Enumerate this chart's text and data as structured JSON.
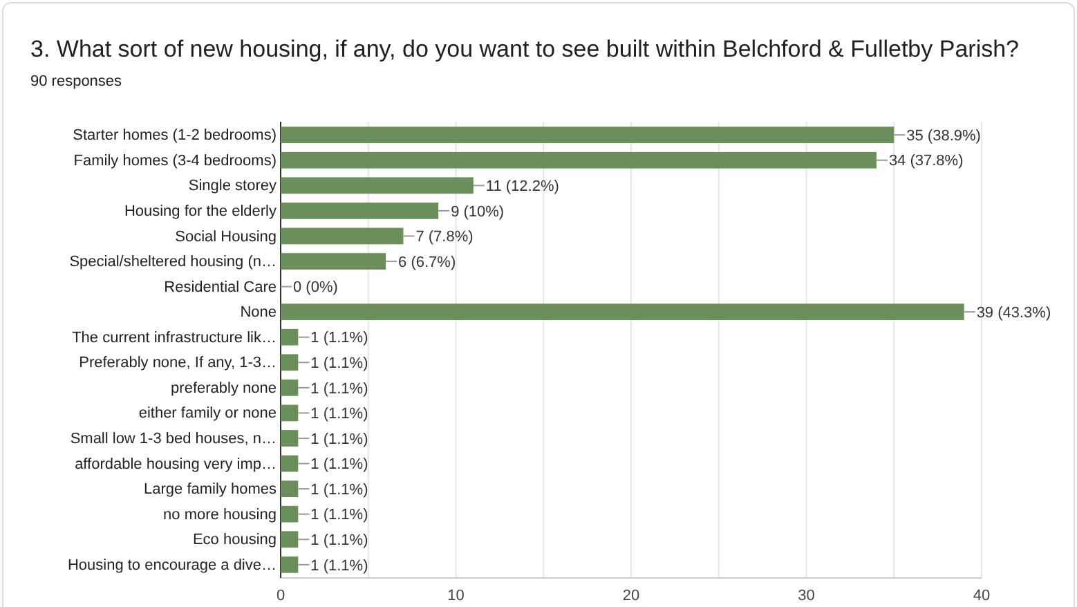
{
  "chart_data": {
    "type": "bar",
    "orientation": "horizontal",
    "title": "3. What sort of new housing, if any, do you want to see built within Belchford & Fulletby Parish?",
    "subtitle": "90 responses",
    "categories": [
      "Starter homes (1-2 bedrooms)",
      "Family homes (3-4 bedrooms)",
      "Single storey",
      "Housing for the elderly",
      "Social Housing",
      "Special/sheltered housing (n…",
      "Residential Care",
      "None",
      "The current infrastructure lik…",
      "Preferably none, If any, 1-3…",
      "preferably none",
      "either family or none",
      "Small low 1-3 bed houses, n…",
      "affordable housing very imp…",
      "Large family homes",
      "no more housing",
      "Eco housing",
      "Housing to encourage a dive…"
    ],
    "values": [
      35,
      34,
      11,
      9,
      7,
      6,
      0,
      39,
      1,
      1,
      1,
      1,
      1,
      1,
      1,
      1,
      1,
      1
    ],
    "value_labels": [
      "35 (38.9%)",
      "34 (37.8%)",
      "11 (12.2%)",
      "9 (10%)",
      "7 (7.8%)",
      "6 (6.7%)",
      "0 (0%)",
      "39 (43.3%)",
      "1 (1.1%)",
      "1 (1.1%)",
      "1 (1.1%)",
      "1 (1.1%)",
      "1 (1.1%)",
      "1 (1.1%)",
      "1 (1.1%)",
      "1 (1.1%)",
      "1 (1.1%)",
      "1 (1.1%)"
    ],
    "color": "#6a8f5a",
    "xlim": [
      0,
      40
    ],
    "xticks": [
      0,
      {
        "value": 5,
        "label": null
      },
      10,
      {
        "value": 15,
        "label": null
      },
      20,
      {
        "value": 25,
        "label": null
      },
      30,
      {
        "value": 35,
        "label": null
      },
      40
    ],
    "grid": "x"
  }
}
